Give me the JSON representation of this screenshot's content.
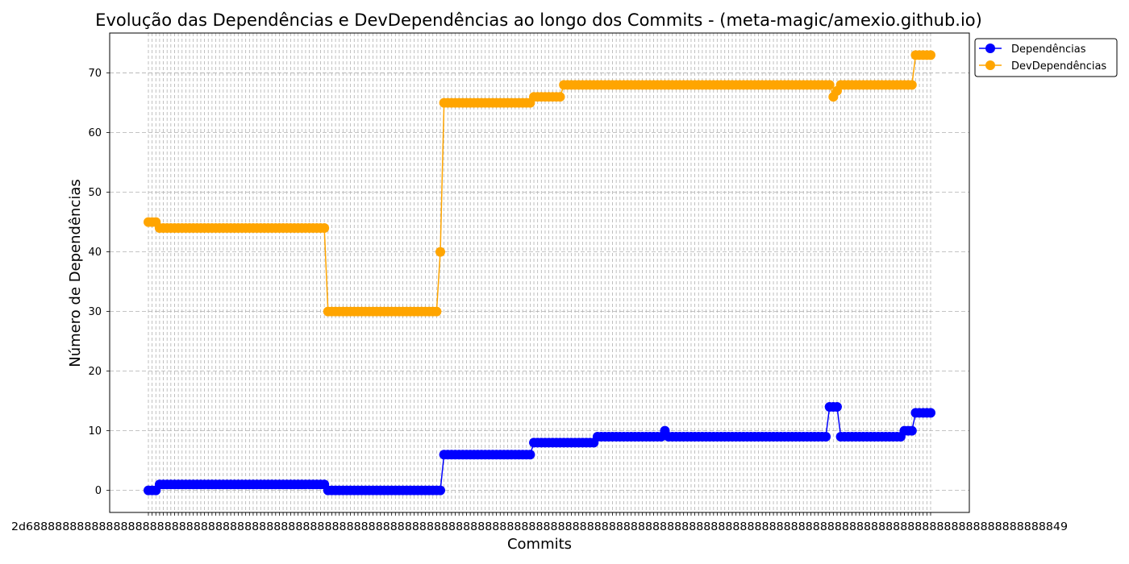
{
  "chart_data": {
    "type": "line",
    "title": "Evolução das Dependências e DevDependências ao longo dos Commits - (meta-magic/amexio.github.io)",
    "xlabel": "Commits",
    "ylabel": "Número de Dependências",
    "ylim": [
      -3.7,
      76.7
    ],
    "yticks": [
      0,
      10,
      20,
      30,
      40,
      50,
      60,
      70
    ],
    "grid": true,
    "legend_position": "outside-top-right",
    "x_tick_labels_note": "2d6",
    "x_tick_label_last": "49",
    "series": [
      {
        "name": "Dependências",
        "color": "#0000ff",
        "runs": [
          [
            0,
            3
          ],
          [
            1,
            45
          ],
          [
            0,
            31
          ],
          [
            6,
            24
          ],
          [
            8,
            17
          ],
          [
            9,
            18
          ],
          [
            10,
            1
          ],
          [
            9,
            43
          ],
          [
            14,
            3
          ],
          [
            9,
            17
          ],
          [
            10,
            3
          ],
          [
            13,
            5
          ]
        ]
      },
      {
        "name": "DevDependências",
        "color": "#ffa500",
        "runs": [
          [
            45,
            3
          ],
          [
            44,
            45
          ],
          [
            30,
            30
          ],
          [
            40,
            1
          ],
          [
            65,
            24
          ],
          [
            66,
            8
          ],
          [
            68,
            72
          ],
          [
            66,
            1
          ],
          [
            67,
            1
          ],
          [
            68,
            20
          ],
          [
            73,
            5
          ]
        ]
      }
    ]
  }
}
